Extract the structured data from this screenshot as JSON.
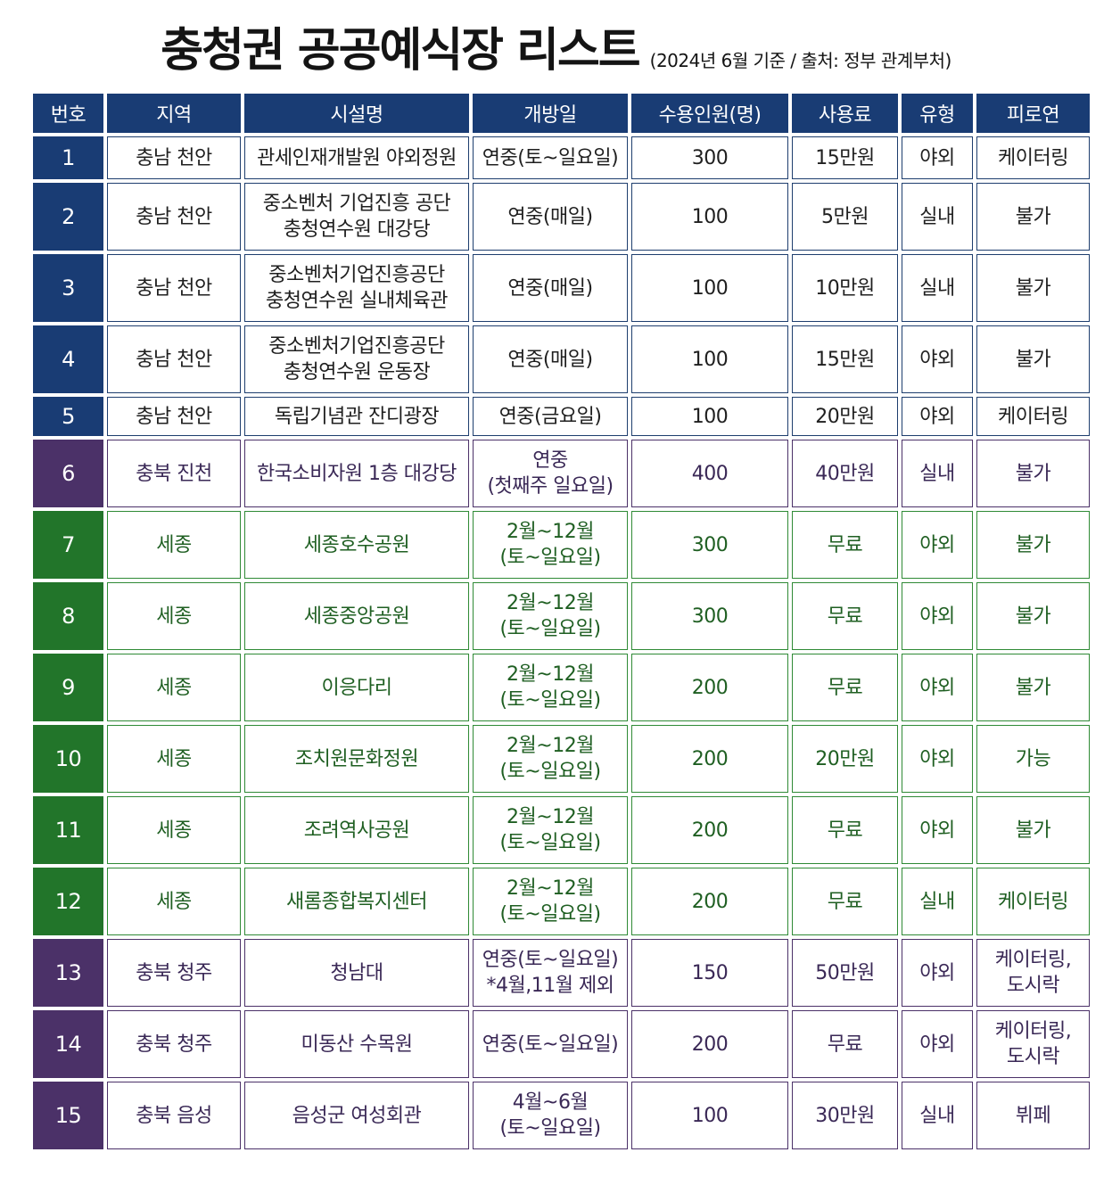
{
  "title": "충청권 공공예식장 리스트",
  "subtitle": "(2024년 6월 기준 / 출처: 정부 관계부처)",
  "headers": [
    "번호",
    "지역",
    "시설명",
    "개방일",
    "수용인원(명)",
    "사용료",
    "유형",
    "피로연"
  ],
  "colors": {
    "blue": "#193c74",
    "purple": "#4b3168",
    "green": "#22752a"
  },
  "rows": [
    {
      "num": "1",
      "region": "충남 천안",
      "facility": [
        "관세인재개발원 야외정원"
      ],
      "open": [
        "연중(토~일요일)"
      ],
      "capacity": "300",
      "fee": "15만원",
      "type": "야외",
      "reception": [
        "케이터링"
      ],
      "group": "blue"
    },
    {
      "num": "2",
      "region": "충남 천안",
      "facility": [
        "중소벤처 기업진흥 공단",
        "충청연수원 대강당"
      ],
      "open": [
        "연중(매일)"
      ],
      "capacity": "100",
      "fee": "5만원",
      "type": "실내",
      "reception": [
        "불가"
      ],
      "group": "blue"
    },
    {
      "num": "3",
      "region": "충남 천안",
      "facility": [
        "중소벤처기업진흥공단",
        "충청연수원 실내체육관"
      ],
      "open": [
        "연중(매일)"
      ],
      "capacity": "100",
      "fee": "10만원",
      "type": "실내",
      "reception": [
        "불가"
      ],
      "group": "blue"
    },
    {
      "num": "4",
      "region": "충남 천안",
      "facility": [
        "중소벤처기업진흥공단",
        "충청연수원 운동장"
      ],
      "open": [
        "연중(매일)"
      ],
      "capacity": "100",
      "fee": "15만원",
      "type": "야외",
      "reception": [
        "불가"
      ],
      "group": "blue"
    },
    {
      "num": "5",
      "region": "충남 천안",
      "facility": [
        "독립기념관 잔디광장"
      ],
      "open": [
        "연중(금요일)"
      ],
      "capacity": "100",
      "fee": "20만원",
      "type": "야외",
      "reception": [
        "케이터링"
      ],
      "group": "blue"
    },
    {
      "num": "6",
      "region": "충북 진천",
      "facility": [
        "한국소비자원 1층 대강당"
      ],
      "open": [
        "연중",
        "(첫째주 일요일)"
      ],
      "capacity": "400",
      "fee": "40만원",
      "type": "실내",
      "reception": [
        "불가"
      ],
      "group": "purple"
    },
    {
      "num": "7",
      "region": "세종",
      "facility": [
        "세종호수공원"
      ],
      "open": [
        "2월~12월",
        "(토~일요일)"
      ],
      "capacity": "300",
      "fee": "무료",
      "type": "야외",
      "reception": [
        "불가"
      ],
      "group": "green"
    },
    {
      "num": "8",
      "region": "세종",
      "facility": [
        "세종중앙공원"
      ],
      "open": [
        "2월~12월",
        "(토~일요일)"
      ],
      "capacity": "300",
      "fee": "무료",
      "type": "야외",
      "reception": [
        "불가"
      ],
      "group": "green"
    },
    {
      "num": "9",
      "region": "세종",
      "facility": [
        "이응다리"
      ],
      "open": [
        "2월~12월",
        "(토~일요일)"
      ],
      "capacity": "200",
      "fee": "무료",
      "type": "야외",
      "reception": [
        "불가"
      ],
      "group": "green"
    },
    {
      "num": "10",
      "region": "세종",
      "facility": [
        "조치원문화정원"
      ],
      "open": [
        "2월~12월",
        "(토~일요일)"
      ],
      "capacity": "200",
      "fee": "20만원",
      "type": "야외",
      "reception": [
        "가능"
      ],
      "group": "green"
    },
    {
      "num": "11",
      "region": "세종",
      "facility": [
        "조려역사공원"
      ],
      "open": [
        "2월~12월",
        "(토~일요일)"
      ],
      "capacity": "200",
      "fee": "무료",
      "type": "야외",
      "reception": [
        "불가"
      ],
      "group": "green"
    },
    {
      "num": "12",
      "region": "세종",
      "facility": [
        "새롬종합복지센터"
      ],
      "open": [
        "2월~12월",
        "(토~일요일)"
      ],
      "capacity": "200",
      "fee": "무료",
      "type": "실내",
      "reception": [
        "케이터링"
      ],
      "group": "green"
    },
    {
      "num": "13",
      "region": "충북 청주",
      "facility": [
        "청남대"
      ],
      "open": [
        "연중(토~일요일)",
        "*4월,11월 제외"
      ],
      "capacity": "150",
      "fee": "50만원",
      "type": "야외",
      "reception": [
        "케이터링,",
        "도시락"
      ],
      "group": "purple"
    },
    {
      "num": "14",
      "region": "충북 청주",
      "facility": [
        "미동산 수목원"
      ],
      "open": [
        "연중(토~일요일)"
      ],
      "capacity": "200",
      "fee": "무료",
      "type": "야외",
      "reception": [
        "케이터링,",
        "도시락"
      ],
      "group": "purple"
    },
    {
      "num": "15",
      "region": "충북 음성",
      "facility": [
        "음성군 여성회관"
      ],
      "open": [
        "4월~6월",
        "(토~일요일)"
      ],
      "capacity": "100",
      "fee": "30만원",
      "type": "실내",
      "reception": [
        "뷔페"
      ],
      "group": "purple"
    }
  ]
}
